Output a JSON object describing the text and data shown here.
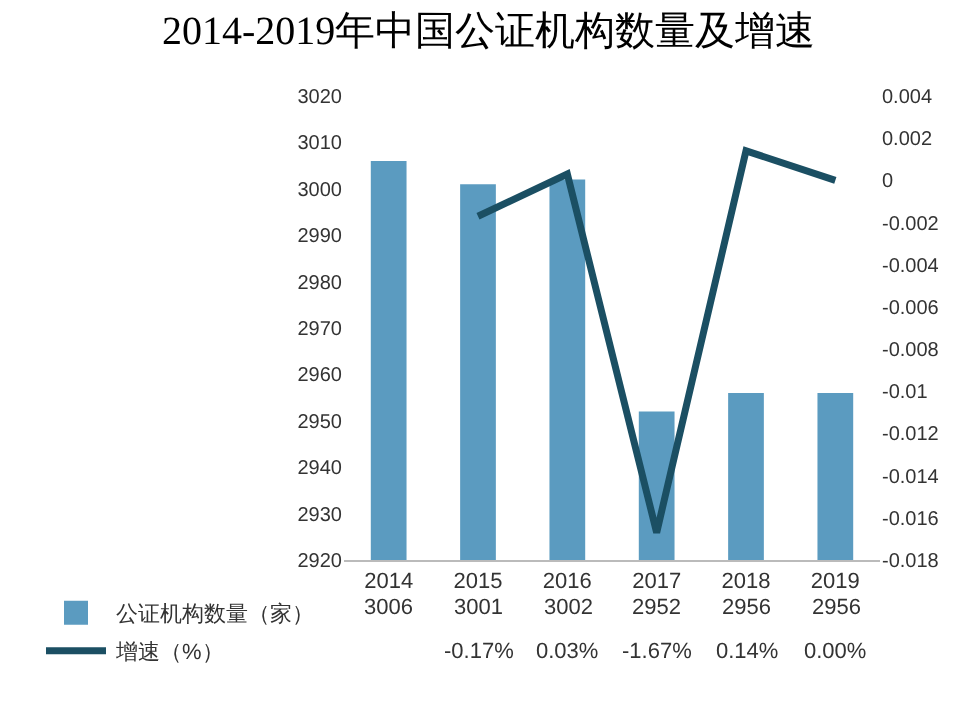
{
  "chart_data": {
    "type": "bar",
    "title": "2014-2019年中国公证机构数量及增速",
    "categories": [
      "2014",
      "2015",
      "2016",
      "2017",
      "2018",
      "2019"
    ],
    "ylim": [
      2920,
      3020
    ],
    "yticks": [
      2920,
      2930,
      2940,
      2950,
      2960,
      2970,
      2980,
      2990,
      3000,
      3010,
      3020
    ],
    "y2lim": [
      -0.018,
      0.004
    ],
    "y2ticks": [
      -0.018,
      -0.016,
      -0.014,
      -0.012,
      -0.01,
      -0.008,
      -0.006,
      -0.004,
      -0.002,
      0,
      0.002,
      0.004
    ],
    "legend": "bottom left",
    "series": [
      {
        "name": "公证机构数量（家）",
        "color": "#5b9bc0",
        "values": [
          3006,
          3001,
          3002,
          2952,
          2956,
          2956
        ],
        "value_labels": [
          "3006",
          "3001",
          "3002",
          "2952",
          "2956",
          "2956"
        ]
      },
      {
        "name": "增速（%）",
        "type": "line",
        "axis": "y2",
        "color": "#1b4f63",
        "values": [
          null,
          -0.0017,
          0.0003,
          -0.0167,
          0.0014,
          0.0
        ],
        "value_labels": [
          null,
          "-0.17%",
          "0.03%",
          "-1.67%",
          "0.14%",
          "0.00%"
        ]
      }
    ]
  }
}
